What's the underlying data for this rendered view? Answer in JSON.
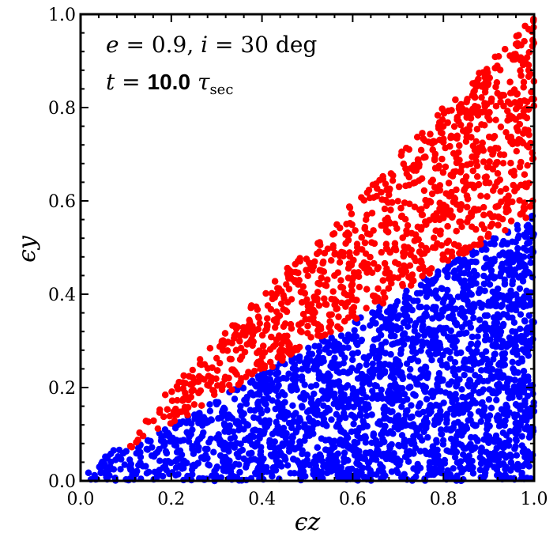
{
  "chart_data": {
    "type": "scatter",
    "xlabel": "ϵz",
    "ylabel": "ϵy",
    "xlim": [
      0.0,
      1.0
    ],
    "ylim": [
      0.0,
      1.0
    ],
    "x_ticks": [
      "0.0",
      "0.2",
      "0.4",
      "0.6",
      "0.8",
      "1.0"
    ],
    "y_ticks": [
      "0.0",
      "0.2",
      "0.4",
      "0.6",
      "0.8",
      "1.0"
    ],
    "grid": false,
    "annotations": {
      "line1": {
        "e_var": "e",
        "eq1": " = 0.9, ",
        "i_var": "i",
        "eq2": " = 30 deg"
      },
      "line2": {
        "t_var": "t",
        "eq": " = ",
        "value": "10.0",
        "tau": "τ",
        "sub": "sec"
      }
    },
    "series": [
      {
        "color": "#ff0000",
        "region": "upper wedge: y between 0.57·x and x",
        "boundary_points": [
          [
            0.07,
            0.07
          ],
          [
            0.1,
            0.065
          ],
          [
            0.2,
            0.12
          ],
          [
            0.4,
            0.23
          ],
          [
            0.6,
            0.34
          ],
          [
            0.8,
            0.46
          ],
          [
            1.0,
            0.57
          ]
        ]
      },
      {
        "color": "#0000ff",
        "region": "lower wedge: y between 0 and 0.57·x",
        "boundary_points": [
          [
            0.0,
            0.0
          ],
          [
            1.0,
            0.0
          ],
          [
            1.0,
            0.57
          ]
        ]
      }
    ]
  }
}
